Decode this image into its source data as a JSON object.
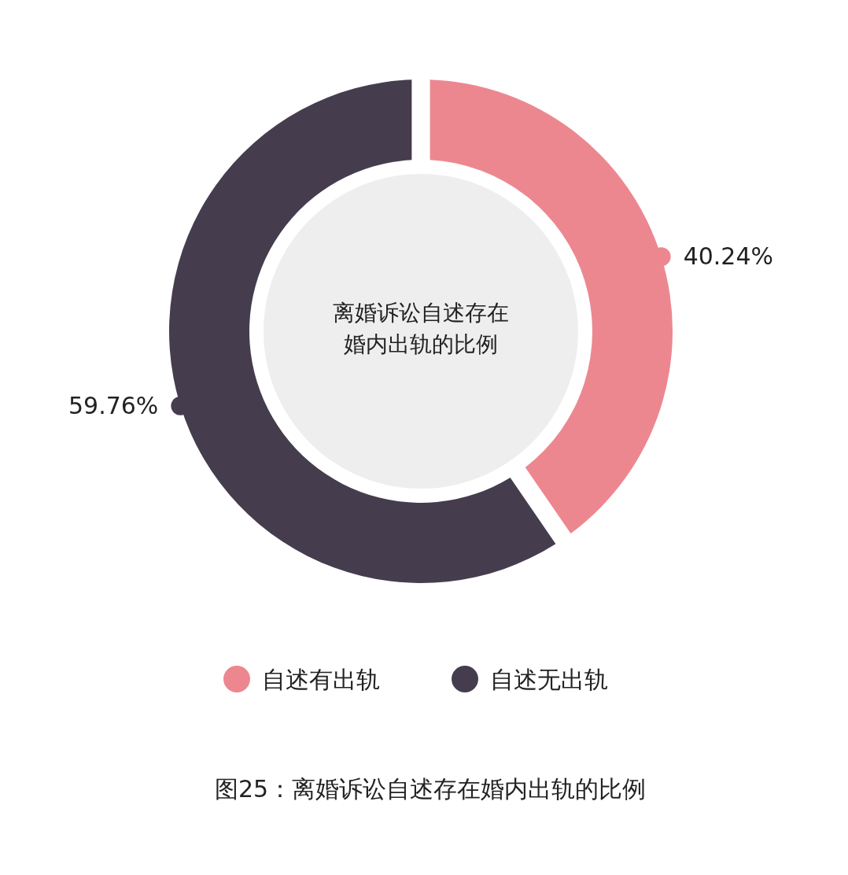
{
  "chart_data": {
    "type": "donut",
    "title": "离婚诉讼自述存在婚内出轨的比例",
    "categories": [
      "自述有出轨",
      "自述无出轨"
    ],
    "values": [
      40.24,
      59.76
    ],
    "colors": [
      "#ec8790",
      "#453d4e"
    ],
    "value_labels": [
      "40.24%",
      "59.76%"
    ],
    "legend": "bottom",
    "annotations": [
      "图25：离婚诉讼自述存在婚内出轨的比例"
    ]
  }
}
